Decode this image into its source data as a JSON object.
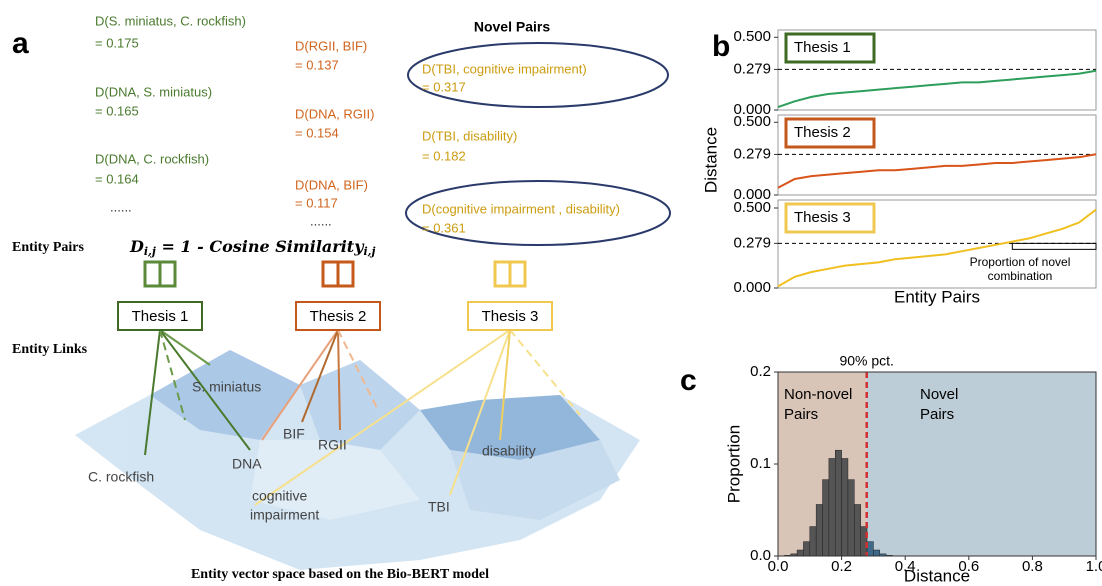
{
  "panel_a": {
    "letter": "a",
    "novel_title": "Novel Pairs",
    "columns": [
      {
        "color": "#4a7a2e",
        "pairs": [
          [
            "D(S. miniatus, C. rockfish)",
            "= 0.175"
          ],
          [
            "D(DNA, S. miniatus)",
            "= 0.165"
          ],
          [
            "D(DNA, C. rockfish)",
            "= 0.164"
          ]
        ],
        "more": "......"
      },
      {
        "color": "#d0641e",
        "pairs": [
          [
            "D(RGII, BIF)",
            "= 0.137"
          ],
          [
            "D(DNA, RGII)",
            "= 0.154"
          ],
          [
            "D(DNA, BIF)",
            "= 0.117"
          ]
        ],
        "more": "......"
      },
      {
        "color": "#cc9c10",
        "pairs": [
          [
            "D(TBI, cognitive impairment)",
            "= 0.317"
          ],
          [
            "D(TBI, disability)",
            "= 0.182"
          ],
          [
            "D(cognitive impairment , disability)",
            "= 0.361"
          ]
        ]
      }
    ],
    "entity_pairs": "Entity Pairs",
    "entity_links": "Entity Links",
    "formula": {
      "main": "D",
      "sub": "i,j",
      "rest": " = 1 - Cosine Similarity",
      "sub2": "i,j"
    },
    "theses": [
      "Thesis 1",
      "Thesis 2",
      "Thesis 3"
    ],
    "nodes": [
      "S. miniatus",
      "C. rockfish",
      "DNA",
      "BIF",
      "RGII",
      "cognitive",
      "impairment",
      "TBI",
      "disability"
    ],
    "caption": "Entity vector space based on the Bio-BERT model"
  },
  "panel_b": {
    "letter": "b",
    "ylabel": "Distance",
    "xlabel": "Entity Pairs",
    "annotation": [
      "Proportion of novel",
      "combination"
    ]
  },
  "panel_c": {
    "letter": "c",
    "regions": [
      "Non-novel",
      "Pairs",
      "Novel",
      "Pairs"
    ],
    "threshold_label": "90% pct."
  },
  "chart_data": [
    {
      "type": "line",
      "legend": "Thesis 1",
      "color": "#2e9e5b",
      "border": "#3d6b24",
      "values": [
        0.02,
        0.06,
        0.09,
        0.11,
        0.12,
        0.13,
        0.14,
        0.15,
        0.16,
        0.17,
        0.18,
        0.19,
        0.19,
        0.2,
        0.21,
        0.22,
        0.23,
        0.24,
        0.25,
        0.27
      ],
      "ylim": [
        0,
        0.55
      ],
      "yticks": [
        {
          "value": 0,
          "label": "0.000"
        },
        0.279,
        {
          "value": 0.5,
          "label": "0.500"
        }
      ]
    },
    {
      "type": "line",
      "legend": "Thesis 2",
      "color": "#d9541a",
      "border": "#c4581a",
      "values": [
        0.05,
        0.11,
        0.13,
        0.14,
        0.15,
        0.16,
        0.17,
        0.17,
        0.18,
        0.19,
        0.2,
        0.2,
        0.21,
        0.22,
        0.22,
        0.23,
        0.24,
        0.25,
        0.26,
        0.28
      ],
      "ylim": [
        0,
        0.55
      ],
      "yticks": [
        {
          "value": 0,
          "label": "0.000"
        },
        0.279,
        {
          "value": 0.5,
          "label": "0.500"
        }
      ]
    },
    {
      "type": "line",
      "legend": "Thesis 3",
      "color": "#f0c020",
      "border": "#f0c850",
      "values": [
        0.01,
        0.07,
        0.1,
        0.12,
        0.14,
        0.15,
        0.16,
        0.18,
        0.19,
        0.2,
        0.21,
        0.23,
        0.25,
        0.27,
        0.29,
        0.31,
        0.34,
        0.37,
        0.41,
        0.49
      ],
      "ylim": [
        0,
        0.55
      ],
      "yticks": [
        {
          "value": 0,
          "label": "0.000"
        },
        0.279,
        {
          "value": 0.5,
          "label": "0.500"
        }
      ]
    },
    {
      "type": "histogram",
      "xlabel": "Distance",
      "ylabel": "Proportion",
      "threshold": 0.279,
      "color": "#555555",
      "novel_color": "#3d6a8a",
      "region_colors": [
        "#d9c4b8",
        "#bccdd8"
      ],
      "bins": [
        0,
        0.02,
        0.04,
        0.06,
        0.08,
        0.1,
        0.12,
        0.14,
        0.16,
        0.18,
        0.2,
        0.22,
        0.24,
        0.26,
        0.28,
        0.3,
        0.32,
        0.34,
        0.36,
        0.38,
        0.4,
        0.42,
        0.44,
        0.46,
        0.48,
        0.5
      ],
      "values": [
        0.0002,
        0.0007,
        0.0023,
        0.0065,
        0.0156,
        0.032,
        0.056,
        0.083,
        0.106,
        0.115,
        0.106,
        0.083,
        0.056,
        0.032,
        0.0156,
        0.0065,
        0.0023,
        0.0007,
        0.0002,
        0.0001,
        0.0001,
        0.0001,
        0,
        0,
        0
      ],
      "xlim": [
        0,
        1
      ],
      "xticks": [
        {
          "value": 0,
          "label": "0.0"
        },
        0.2,
        0.4,
        0.6,
        0.8,
        {
          "value": 1,
          "label": "1.0"
        }
      ],
      "ylim": [
        0,
        0.2
      ],
      "yticks": [
        {
          "value": 0,
          "label": "0.0"
        },
        0.1,
        0.2
      ]
    }
  ]
}
